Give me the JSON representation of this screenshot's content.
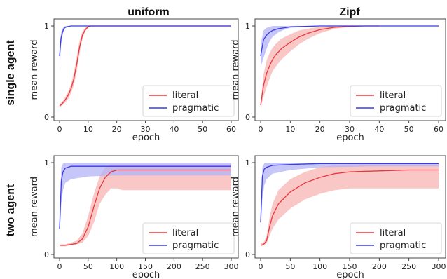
{
  "column_titles": [
    "uniform",
    "Zipf"
  ],
  "row_titles": [
    "single agent",
    "two agent"
  ],
  "colors": {
    "literal": "#e8383d",
    "literal_band": "#f8b4b4",
    "pragmatic": "#3a3ae8",
    "pragmatic_band": "#b3b3f5"
  },
  "chart_data": [
    {
      "type": "line",
      "panel": "single agent / uniform",
      "xlabel": "epoch",
      "ylabel": "mean reward",
      "xlim": [
        0,
        60
      ],
      "ylim": [
        0,
        1
      ],
      "xticks": [
        0,
        10,
        20,
        30,
        40,
        50,
        60
      ],
      "yticks": [
        0,
        1
      ],
      "legend": "bottom-right",
      "series": [
        {
          "name": "literal",
          "x": [
            0,
            1,
            2,
            3,
            4,
            5,
            6,
            7,
            8,
            9,
            10,
            11,
            12,
            13,
            14,
            60
          ],
          "y": [
            0.12,
            0.15,
            0.19,
            0.24,
            0.31,
            0.42,
            0.58,
            0.77,
            0.9,
            0.96,
            0.99,
            1.0,
            1.0,
            1.0,
            1.0,
            1.0
          ],
          "lower": [
            0.11,
            0.13,
            0.16,
            0.2,
            0.26,
            0.35,
            0.5,
            0.7,
            0.86,
            0.94,
            0.98,
            1.0,
            1.0,
            1.0,
            1.0,
            1.0
          ],
          "upper": [
            0.14,
            0.17,
            0.22,
            0.28,
            0.36,
            0.49,
            0.66,
            0.84,
            0.94,
            0.98,
            1.0,
            1.0,
            1.0,
            1.0,
            1.0,
            1.0
          ]
        },
        {
          "name": "pragmatic",
          "x": [
            0,
            0.5,
            1,
            1.5,
            2,
            3,
            4,
            5,
            60
          ],
          "y": [
            0.67,
            0.86,
            0.93,
            0.97,
            0.985,
            0.995,
            1.0,
            1.0,
            1.0
          ],
          "lower": [
            0.5,
            0.78,
            0.89,
            0.95,
            0.975,
            0.99,
            1.0,
            1.0,
            1.0
          ],
          "upper": [
            0.78,
            0.92,
            0.97,
            0.99,
            1.0,
            1.0,
            1.0,
            1.0,
            1.0
          ]
        }
      ]
    },
    {
      "type": "line",
      "panel": "single agent / Zipf",
      "xlabel": "epoch",
      "ylabel": "mean reward",
      "xlim": [
        0,
        60
      ],
      "ylim": [
        0,
        1
      ],
      "xticks": [
        0,
        10,
        20,
        30,
        40,
        50,
        60
      ],
      "yticks": [
        0,
        1
      ],
      "legend": "bottom-right",
      "series": [
        {
          "name": "literal",
          "x": [
            0,
            1,
            2,
            3,
            4,
            5,
            7,
            10,
            13,
            16,
            20,
            25,
            30,
            35,
            40
          ],
          "y": [
            0.13,
            0.35,
            0.48,
            0.56,
            0.63,
            0.68,
            0.75,
            0.82,
            0.88,
            0.92,
            0.96,
            0.985,
            0.995,
            1.0,
            1.0
          ],
          "lower": [
            0.11,
            0.22,
            0.33,
            0.42,
            0.5,
            0.55,
            0.63,
            0.72,
            0.8,
            0.86,
            0.92,
            0.97,
            0.99,
            1.0,
            1.0
          ],
          "upper": [
            0.16,
            0.47,
            0.62,
            0.7,
            0.76,
            0.8,
            0.86,
            0.91,
            0.95,
            0.97,
            0.99,
            1.0,
            1.0,
            1.0,
            1.0
          ]
        },
        {
          "name": "pragmatic",
          "x": [
            0,
            1,
            2,
            3,
            4,
            6,
            8,
            10,
            15,
            20,
            60
          ],
          "y": [
            0.67,
            0.85,
            0.9,
            0.93,
            0.95,
            0.97,
            0.98,
            0.99,
            0.995,
            1.0,
            1.0
          ],
          "lower": [
            0.55,
            0.65,
            0.75,
            0.83,
            0.88,
            0.93,
            0.96,
            0.98,
            0.99,
            1.0,
            1.0
          ],
          "upper": [
            0.8,
            0.95,
            0.98,
            0.99,
            1.0,
            1.0,
            1.0,
            1.0,
            1.0,
            1.0,
            1.0
          ]
        }
      ]
    },
    {
      "type": "line",
      "panel": "two agent / uniform",
      "xlabel": "epoch",
      "ylabel": "mean reward",
      "xlim": [
        0,
        300
      ],
      "ylim": [
        0,
        1
      ],
      "xticks": [
        0,
        50,
        100,
        150,
        200,
        250,
        300
      ],
      "yticks": [
        0,
        1
      ],
      "legend": "bottom-right",
      "series": [
        {
          "name": "literal",
          "x": [
            0,
            10,
            20,
            30,
            40,
            50,
            60,
            70,
            80,
            90,
            100,
            110,
            120,
            150,
            200,
            250,
            300
          ],
          "y": [
            0.1,
            0.1,
            0.11,
            0.12,
            0.17,
            0.3,
            0.52,
            0.72,
            0.84,
            0.9,
            0.92,
            0.92,
            0.92,
            0.92,
            0.92,
            0.92,
            0.92
          ],
          "lower": [
            0.09,
            0.09,
            0.1,
            0.11,
            0.13,
            0.2,
            0.35,
            0.55,
            0.65,
            0.72,
            0.72,
            0.7,
            0.7,
            0.7,
            0.7,
            0.7,
            0.7
          ],
          "upper": [
            0.11,
            0.11,
            0.13,
            0.15,
            0.23,
            0.42,
            0.66,
            0.85,
            0.95,
            0.98,
            0.98,
            0.98,
            0.98,
            0.98,
            0.98,
            0.98,
            0.98
          ]
        },
        {
          "name": "pragmatic",
          "x": [
            0,
            3,
            6,
            10,
            15,
            20,
            30,
            50,
            100,
            200,
            300
          ],
          "y": [
            0.28,
            0.8,
            0.9,
            0.94,
            0.95,
            0.96,
            0.96,
            0.96,
            0.96,
            0.96,
            0.96
          ],
          "lower": [
            0.2,
            0.55,
            0.7,
            0.78,
            0.8,
            0.82,
            0.83,
            0.85,
            0.86,
            0.86,
            0.86
          ],
          "upper": [
            0.35,
            0.95,
            0.99,
            1.0,
            1.0,
            1.0,
            1.0,
            1.0,
            1.0,
            1.0,
            1.0
          ]
        }
      ]
    },
    {
      "type": "line",
      "panel": "two agent / Zipf",
      "xlabel": "epoch",
      "ylabel": "mean reward",
      "xlim": [
        0,
        300
      ],
      "ylim": [
        0,
        1
      ],
      "xticks": [
        0,
        50,
        100,
        150,
        200,
        250,
        300
      ],
      "yticks": [
        0,
        1
      ],
      "legend": "bottom-right",
      "series": [
        {
          "name": "literal",
          "x": [
            0,
            5,
            10,
            15,
            20,
            30,
            50,
            75,
            100,
            125,
            150,
            200,
            250,
            300
          ],
          "y": [
            0.1,
            0.11,
            0.15,
            0.3,
            0.42,
            0.55,
            0.68,
            0.78,
            0.84,
            0.88,
            0.9,
            0.91,
            0.92,
            0.92
          ],
          "lower": [
            0.09,
            0.1,
            0.12,
            0.2,
            0.28,
            0.38,
            0.5,
            0.6,
            0.66,
            0.7,
            0.72,
            0.72,
            0.72,
            0.72
          ],
          "upper": [
            0.12,
            0.13,
            0.2,
            0.4,
            0.55,
            0.7,
            0.82,
            0.9,
            0.95,
            0.97,
            0.98,
            0.98,
            0.98,
            0.98
          ]
        },
        {
          "name": "pragmatic",
          "x": [
            0,
            3,
            6,
            10,
            20,
            50,
            100,
            200,
            300
          ],
          "y": [
            0.35,
            0.85,
            0.93,
            0.95,
            0.97,
            0.98,
            0.99,
            0.99,
            0.99
          ],
          "lower": [
            0.25,
            0.6,
            0.75,
            0.82,
            0.88,
            0.92,
            0.95,
            0.96,
            0.96
          ],
          "upper": [
            0.45,
            0.95,
            0.99,
            1.0,
            1.0,
            1.0,
            1.0,
            1.0,
            1.0
          ]
        }
      ]
    }
  ]
}
